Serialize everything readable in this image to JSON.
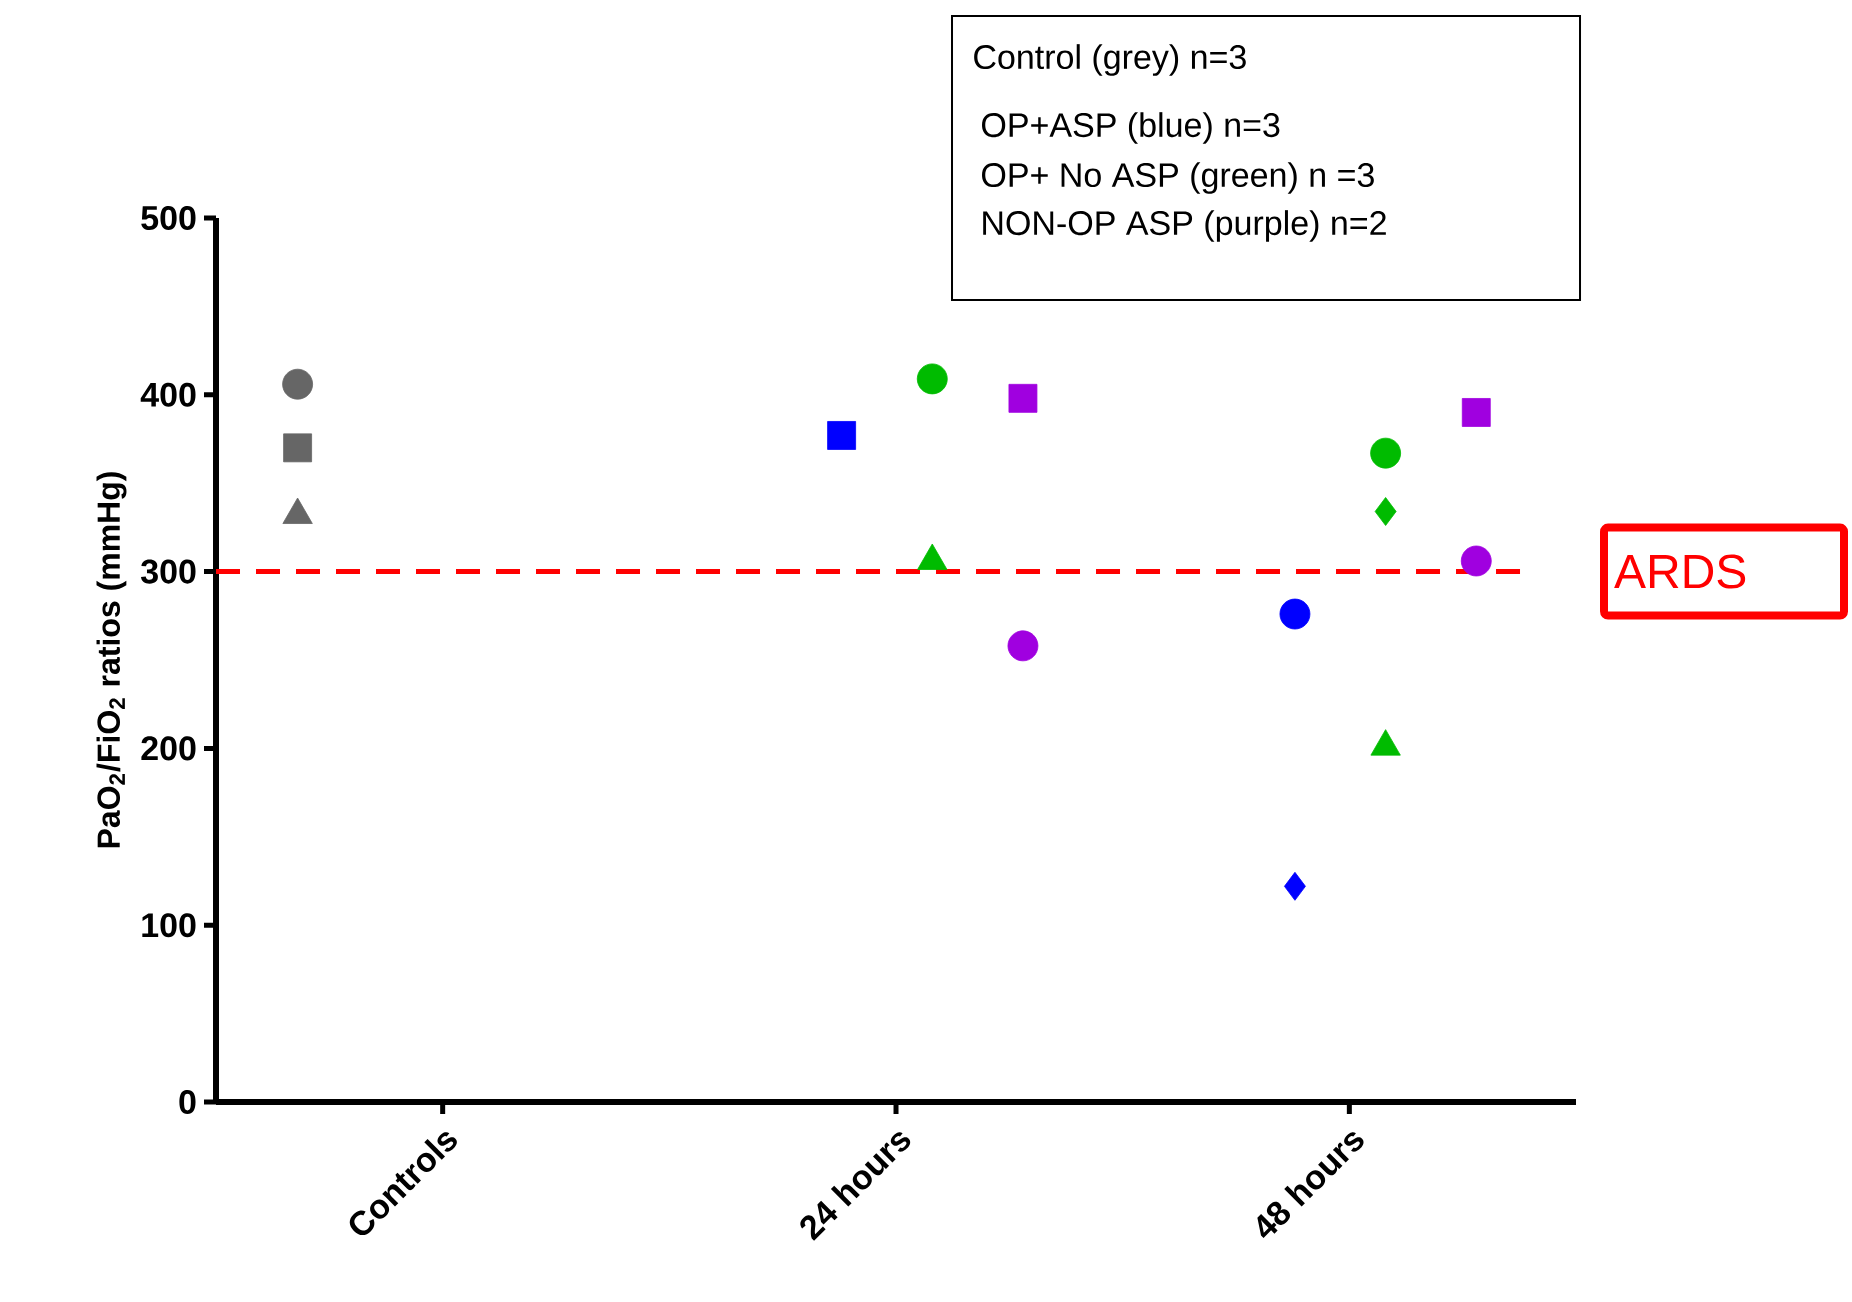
{
  "chart_data": {
    "type": "scatter",
    "ylabel": "PaO$_{2}$/FiO$_{2}$ ratios (mmHg)",
    "categories": [
      "Controls",
      "24 hours",
      "48 hours"
    ],
    "ylim": [
      0,
      500
    ],
    "yticks": [
      0,
      100,
      200,
      300,
      400,
      500
    ],
    "series": [
      {
        "color": "#666666",
        "marker": "circle",
        "x": [
          "Controls"
        ],
        "values": [
          406
        ]
      },
      {
        "color": "#666666",
        "marker": "square",
        "x": [
          "Controls"
        ],
        "values": [
          370
        ]
      },
      {
        "color": "#666666",
        "marker": "triangle",
        "x": [
          "Controls"
        ],
        "values": [
          332
        ]
      },
      {
        "color": "#0000ff",
        "marker": "square",
        "x": [
          "24 hours"
        ],
        "values": [
          377
        ]
      },
      {
        "color": "#0000ff",
        "marker": "circle",
        "x": [
          "48 hours"
        ],
        "values": [
          276
        ]
      },
      {
        "color": "#0000ff",
        "marker": "diamond",
        "x": [
          "48 hours"
        ],
        "values": [
          122
        ]
      },
      {
        "color": "#00bb00",
        "marker": "circle",
        "x": [
          "24 hours",
          "48 hours"
        ],
        "values": [
          409,
          367
        ]
      },
      {
        "color": "#00bb00",
        "marker": "triangle",
        "x": [
          "24 hours",
          "48 hours"
        ],
        "values": [
          306,
          201
        ]
      },
      {
        "color": "#00bb00",
        "marker": "diamond",
        "x": [
          "48 hours"
        ],
        "values": [
          334
        ]
      },
      {
        "color": "#a000e0",
        "marker": "square",
        "x": [
          "24 hours",
          "48 hours"
        ],
        "values": [
          398,
          390
        ]
      },
      {
        "color": "#a000e0",
        "marker": "circle",
        "x": [
          "24 hours",
          "48 hours"
        ],
        "values": [
          258,
          306
        ]
      }
    ],
    "ref_lines": [
      {
        "axis": "y",
        "value": 300,
        "label": "ARDS",
        "color": "#ff0000",
        "line_style": "dashed"
      }
    ],
    "annotations": [
      "Control (grey) n=3",
      "OP+ASP (blue) n=3",
      "OP+ No ASP (green) n =3",
      "NON-OP  ASP  (purple) n=2"
    ]
  }
}
